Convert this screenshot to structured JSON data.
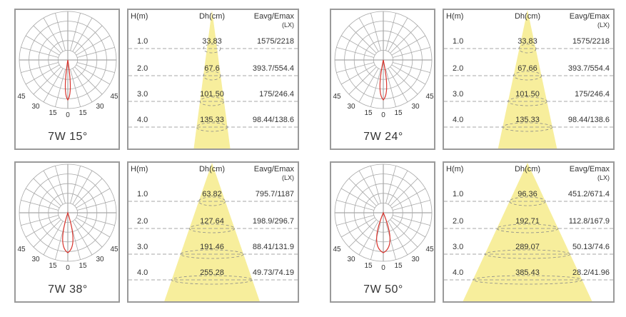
{
  "charts": [
    {
      "caption": "7W 15°",
      "beam_deg": 15,
      "headers": {
        "h": "H(m)",
        "dh": "Dh(cm)",
        "e": "Eavg/Emax",
        "unit": "(LX)"
      },
      "angle_labels": [
        "45",
        "30",
        "15",
        "0",
        "15",
        "30",
        "45"
      ],
      "rows": [
        {
          "h": "1.0",
          "dh": "33.83",
          "e": "1575/2218"
        },
        {
          "h": "2.0",
          "dh": "67.6",
          "e": "393.7/554.4"
        },
        {
          "h": "3.0",
          "dh": "101.50",
          "e": "175/246.4"
        },
        {
          "h": "4.0",
          "dh": "135.33",
          "e": "98.44/138.6"
        }
      ]
    },
    {
      "caption": "7W 24°",
      "beam_deg": 24,
      "headers": {
        "h": "H(m)",
        "dh": "Dh(cm)",
        "e": "Eavg/Emax",
        "unit": "(LX)"
      },
      "angle_labels": [
        "45",
        "30",
        "15",
        "0",
        "15",
        "30",
        "45"
      ],
      "rows": [
        {
          "h": "1.0",
          "dh": "33.83",
          "e": "1575/2218"
        },
        {
          "h": "2.0",
          "dh": "67.66",
          "e": "393.7/554.4"
        },
        {
          "h": "3.0",
          "dh": "101.50",
          "e": "175/246.4"
        },
        {
          "h": "4.0",
          "dh": "135.33",
          "e": "98.44/138.6"
        }
      ]
    },
    {
      "caption": "7W 38°",
      "beam_deg": 38,
      "headers": {
        "h": "H(m)",
        "dh": "Dh(cm)",
        "e": "Eavg/Emax",
        "unit": "(LX)"
      },
      "angle_labels": [
        "45",
        "30",
        "15",
        "0",
        "15",
        "30",
        "45"
      ],
      "rows": [
        {
          "h": "1.0",
          "dh": "63.82",
          "e": "795.7/1187"
        },
        {
          "h": "2.0",
          "dh": "127.64",
          "e": "198.9/296.7"
        },
        {
          "h": "3.0",
          "dh": "191.46",
          "e": "88.41/131.9"
        },
        {
          "h": "4.0",
          "dh": "255.28",
          "e": "49.73/74.19"
        }
      ]
    },
    {
      "caption": "7W 50°",
      "beam_deg": 50,
      "headers": {
        "h": "H(m)",
        "dh": "Dh(cm)",
        "e": "Eavg/Emax",
        "unit": "(LX)"
      },
      "angle_labels": [
        "45",
        "30",
        "15",
        "0",
        "15",
        "30",
        "45"
      ],
      "rows": [
        {
          "h": "1.0",
          "dh": "96.36",
          "e": "451.2/671.4"
        },
        {
          "h": "2.0",
          "dh": "192.71",
          "e": "112.8/167.9"
        },
        {
          "h": "3.0",
          "dh": "289.07",
          "e": "50.13/74.6"
        },
        {
          "h": "4.0",
          "dh": "385.43",
          "e": "28.2/41.96"
        }
      ]
    }
  ],
  "colors": {
    "beam": "#f7ee9c",
    "curve": "#d8312a",
    "grid": "#a8a8a8",
    "dash": "#8a8a8a",
    "border": "#9a9a9a"
  }
}
